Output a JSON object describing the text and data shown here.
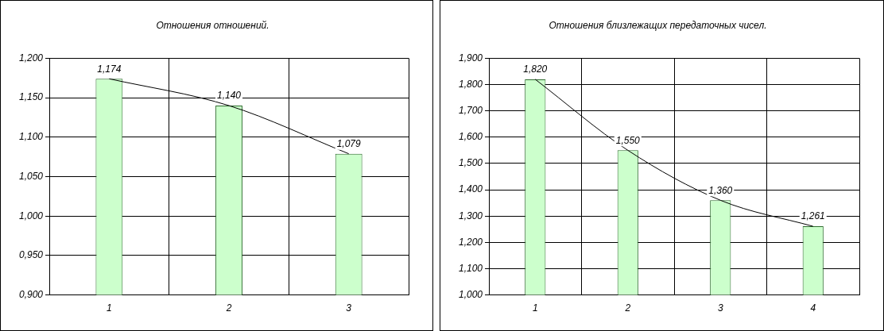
{
  "chart_data": [
    {
      "type": "bar",
      "title": "Отношения отношений.",
      "categories": [
        "1",
        "2",
        "3"
      ],
      "ylim": [
        0.9,
        1.2
      ],
      "yticks": [
        {
          "value": 0.9,
          "label": "0,900"
        },
        {
          "value": 0.95,
          "label": "0,950"
        },
        {
          "value": 1.0,
          "label": "1,000"
        },
        {
          "value": 1.05,
          "label": "1,050"
        },
        {
          "value": 1.1,
          "label": "1,100"
        },
        {
          "value": 1.15,
          "label": "1,150"
        },
        {
          "value": 1.2,
          "label": "1,200"
        }
      ],
      "grid": true,
      "series": [
        {
          "color": "#ccffcc",
          "values": [
            1.174,
            1.14,
            1.079
          ],
          "value_labels": [
            "1,174",
            "1,140",
            "1,079"
          ]
        },
        {
          "type": "line",
          "color": "#000000",
          "values": [
            1.174,
            1.14,
            1.079
          ]
        }
      ]
    },
    {
      "type": "bar",
      "title": "Отношения близлежащих передаточных чисел.",
      "categories": [
        "1",
        "2",
        "3",
        "4"
      ],
      "ylim": [
        1.0,
        1.9
      ],
      "yticks": [
        {
          "value": 1.0,
          "label": "1,000"
        },
        {
          "value": 1.1,
          "label": "1,100"
        },
        {
          "value": 1.2,
          "label": "1,200"
        },
        {
          "value": 1.3,
          "label": "1,300"
        },
        {
          "value": 1.4,
          "label": "1,400"
        },
        {
          "value": 1.5,
          "label": "1,500"
        },
        {
          "value": 1.6,
          "label": "1,600"
        },
        {
          "value": 1.7,
          "label": "1,700"
        },
        {
          "value": 1.8,
          "label": "1,800"
        },
        {
          "value": 1.9,
          "label": "1,900"
        }
      ],
      "grid": true,
      "series": [
        {
          "color": "#ccffcc",
          "values": [
            1.82,
            1.55,
            1.36,
            1.261
          ],
          "value_labels": [
            "1,820",
            "1,550",
            "1,360",
            "1,261"
          ]
        },
        {
          "type": "line",
          "color": "#000000",
          "values": [
            1.82,
            1.55,
            1.36,
            1.261
          ]
        }
      ]
    }
  ]
}
